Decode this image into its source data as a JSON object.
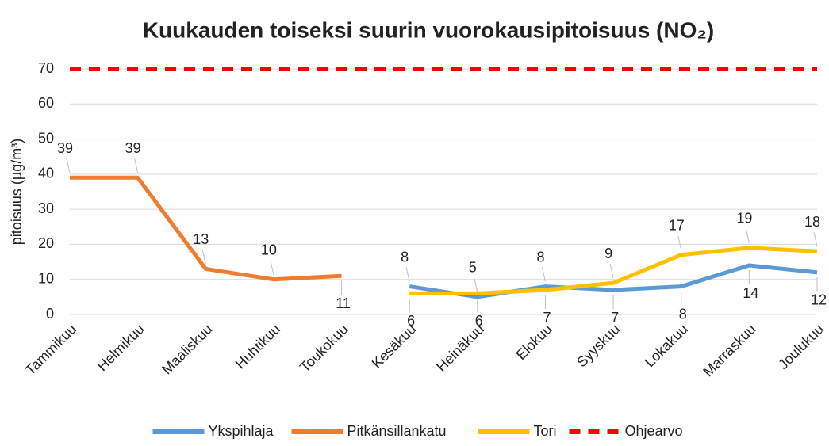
{
  "chart_data": {
    "type": "line",
    "title": "Kuukauden toiseksi suurin vuorokausipitoisuus (NO₂)",
    "y_label": "pitoisuus (µg/m³)",
    "categories": [
      "Tammikuu",
      "Helmikuu",
      "Maaliskuu",
      "Huhtikuu",
      "Toukokuu",
      "Kesäkuu",
      "Heinäkuu",
      "Elokuu",
      "Syyskuu",
      "Lokakuu",
      "Marraskuu",
      "Joulukuu"
    ],
    "series": [
      {
        "name": "Ykspihlaja",
        "color": "#5b9bd5",
        "values": [
          null,
          null,
          null,
          null,
          null,
          8,
          5,
          8,
          7,
          8,
          14,
          12
        ]
      },
      {
        "name": "Pitkänsillankatu",
        "color": "#ed7d31",
        "values": [
          39,
          39,
          13,
          10,
          11,
          null,
          null,
          null,
          null,
          null,
          null,
          null
        ]
      },
      {
        "name": "Tori",
        "color": "#ffc000",
        "values": [
          null,
          null,
          null,
          null,
          null,
          6,
          6,
          7,
          9,
          17,
          19,
          18
        ]
      },
      {
        "name": "Ohjearvo",
        "color": "#ff0000",
        "dashed": true,
        "data_labels": false,
        "values": [
          70,
          70,
          70,
          70,
          70,
          70,
          70,
          70,
          70,
          70,
          70,
          70
        ]
      }
    ],
    "ylim": [
      0,
      70
    ],
    "yticks": [
      0,
      10,
      20,
      30,
      40,
      50,
      60,
      70
    ],
    "grid": true,
    "legend": "bottom"
  }
}
